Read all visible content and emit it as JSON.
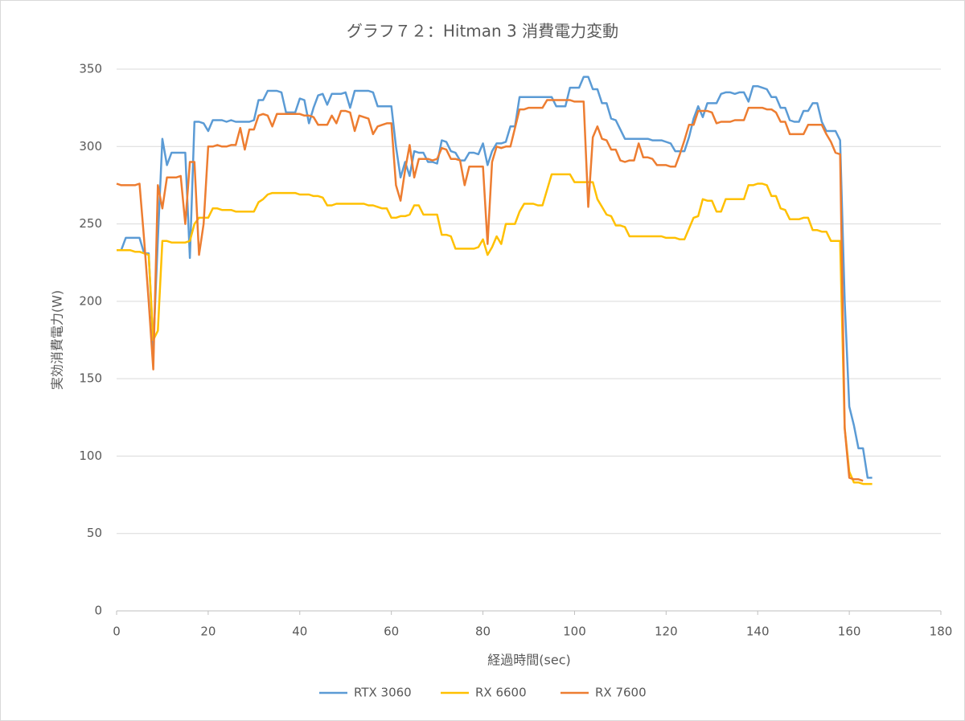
{
  "chart_data": {
    "type": "line",
    "title": "グラフ７２：Hitman 3 消費電力変動",
    "x_label": "経過時間(sec)",
    "y_label": "実効消費電力(W)",
    "xlim": [
      0,
      180
    ],
    "xticks": [
      0,
      20,
      40,
      60,
      80,
      100,
      120,
      140,
      160,
      180
    ],
    "ylim": [
      0,
      350
    ],
    "yticks": [
      0,
      50,
      100,
      150,
      200,
      250,
      300,
      350
    ],
    "grid": true,
    "legend": "bottom",
    "x": [
      0,
      1,
      2,
      3,
      4,
      5,
      6,
      7,
      8,
      9,
      10,
      11,
      12,
      13,
      14,
      15,
      16,
      17,
      18,
      19,
      20,
      21,
      22,
      23,
      24,
      25,
      26,
      27,
      28,
      29,
      30,
      31,
      32,
      33,
      34,
      35,
      36,
      37,
      38,
      39,
      40,
      41,
      42,
      43,
      44,
      45,
      46,
      47,
      48,
      49,
      50,
      51,
      52,
      53,
      54,
      55,
      56,
      57,
      58,
      59,
      60,
      61,
      62,
      63,
      64,
      65,
      66,
      67,
      68,
      69,
      70,
      71,
      72,
      73,
      74,
      75,
      76,
      77,
      78,
      79,
      80,
      81,
      82,
      83,
      84,
      85,
      86,
      87,
      88,
      89,
      90,
      91,
      92,
      93,
      94,
      95,
      96,
      97,
      98,
      99,
      100,
      101,
      102,
      103,
      104,
      105,
      106,
      107,
      108,
      109,
      110,
      111,
      112,
      113,
      114,
      115,
      116,
      117,
      118,
      119,
      120,
      121,
      122,
      123,
      124,
      125,
      126,
      127,
      128,
      129,
      130,
      131,
      132,
      133,
      134,
      135,
      136,
      137,
      138,
      139,
      140,
      141,
      142,
      143,
      144,
      145,
      146,
      147,
      148,
      149,
      150,
      151,
      152,
      153,
      154,
      155,
      156,
      157,
      158,
      159,
      160,
      161,
      162,
      163,
      164,
      165
    ],
    "series": [
      {
        "name": "RTX 3060",
        "color": "#5b9bd5",
        "values": [
          233,
          233,
          241,
          241,
          241,
          241,
          231,
          231,
          170,
          240,
          305,
          288,
          296,
          296,
          296,
          296,
          228,
          316,
          316,
          315,
          310,
          317,
          317,
          317,
          316,
          317,
          316,
          316,
          316,
          316,
          317,
          330,
          330,
          336,
          336,
          336,
          335,
          322,
          322,
          322,
          331,
          330,
          315,
          325,
          333,
          334,
          327,
          334,
          334,
          334,
          335,
          325,
          336,
          336,
          336,
          336,
          335,
          326,
          326,
          326,
          326,
          300,
          280,
          290,
          281,
          297,
          296,
          296,
          290,
          290,
          289,
          304,
          303,
          297,
          296,
          291,
          291,
          296,
          296,
          295,
          302,
          288,
          297,
          302,
          302,
          303,
          313,
          313,
          332,
          332,
          332,
          332,
          332,
          332,
          332,
          332,
          326,
          326,
          326,
          338,
          338,
          338,
          345,
          345,
          337,
          337,
          328,
          328,
          318,
          317,
          311,
          305,
          305,
          305,
          305,
          305,
          305,
          304,
          304,
          304,
          303,
          302,
          297,
          297,
          297,
          306,
          318,
          326,
          319,
          328,
          328,
          328,
          334,
          335,
          335,
          334,
          335,
          335,
          329,
          339,
          339,
          338,
          337,
          332,
          332,
          325,
          325,
          317,
          316,
          316,
          323,
          323,
          328,
          328,
          316,
          310,
          310,
          310,
          304,
          200,
          132,
          120,
          105,
          105,
          86,
          86
        ]
      },
      {
        "name": "RX 6600",
        "color": "#ffc000",
        "values": [
          233,
          233,
          233,
          233,
          232,
          232,
          231,
          230,
          175,
          181,
          239,
          239,
          238,
          238,
          238,
          238,
          239,
          250,
          254,
          254,
          254,
          260,
          260,
          259,
          259,
          259,
          258,
          258,
          258,
          258,
          258,
          264,
          266,
          269,
          270,
          270,
          270,
          270,
          270,
          270,
          269,
          269,
          269,
          268,
          268,
          267,
          262,
          262,
          263,
          263,
          263,
          263,
          263,
          263,
          263,
          262,
          262,
          261,
          260,
          260,
          254,
          254,
          255,
          255,
          256,
          262,
          262,
          256,
          256,
          256,
          256,
          243,
          243,
          242,
          234,
          234,
          234,
          234,
          234,
          235,
          240,
          230,
          235,
          242,
          237,
          250,
          250,
          250,
          258,
          263,
          263,
          263,
          262,
          262,
          272,
          282,
          282,
          282,
          282,
          282,
          277,
          277,
          277,
          277,
          277,
          266,
          261,
          256,
          255,
          249,
          249,
          248,
          242,
          242,
          242,
          242,
          242,
          242,
          242,
          242,
          241,
          241,
          241,
          240,
          240,
          247,
          254,
          255,
          266,
          265,
          265,
          258,
          258,
          266,
          266,
          266,
          266,
          266,
          275,
          275,
          276,
          276,
          275,
          268,
          268,
          260,
          259,
          253,
          253,
          253,
          254,
          254,
          246,
          246,
          245,
          245,
          239,
          239,
          239,
          118,
          90,
          83,
          83,
          82,
          82,
          82
        ]
      },
      {
        "name": "RX 7600",
        "color": "#ed7d31",
        "values": [
          276,
          275,
          275,
          275,
          275,
          276,
          240,
          200,
          156,
          275,
          260,
          280,
          280,
          280,
          281,
          250,
          290,
          290,
          230,
          250,
          300,
          300,
          301,
          300,
          300,
          301,
          301,
          312,
          298,
          311,
          311,
          320,
          321,
          320,
          313,
          321,
          321,
          321,
          321,
          321,
          321,
          320,
          320,
          319,
          314,
          314,
          314,
          320,
          315,
          323,
          323,
          322,
          310,
          320,
          319,
          318,
          308,
          313,
          314,
          315,
          315,
          275,
          265,
          285,
          301,
          280,
          292,
          292,
          292,
          291,
          292,
          299,
          298,
          292,
          292,
          291,
          275,
          287,
          287,
          287,
          287,
          237,
          290,
          300,
          299,
          300,
          300,
          312,
          324,
          324,
          325,
          325,
          325,
          325,
          330,
          330,
          330,
          330,
          330,
          330,
          329,
          329,
          329,
          261,
          306,
          313,
          305,
          304,
          298,
          298,
          291,
          290,
          291,
          291,
          302,
          293,
          293,
          292,
          288,
          288,
          288,
          287,
          287,
          295,
          304,
          314,
          314,
          323,
          323,
          323,
          322,
          315,
          316,
          316,
          316,
          317,
          317,
          317,
          325,
          325,
          325,
          325,
          324,
          324,
          322,
          316,
          316,
          308,
          308,
          308,
          308,
          314,
          314,
          314,
          314,
          308,
          303,
          296,
          295,
          118,
          86,
          85,
          85,
          84,
          null,
          null
        ]
      }
    ]
  }
}
